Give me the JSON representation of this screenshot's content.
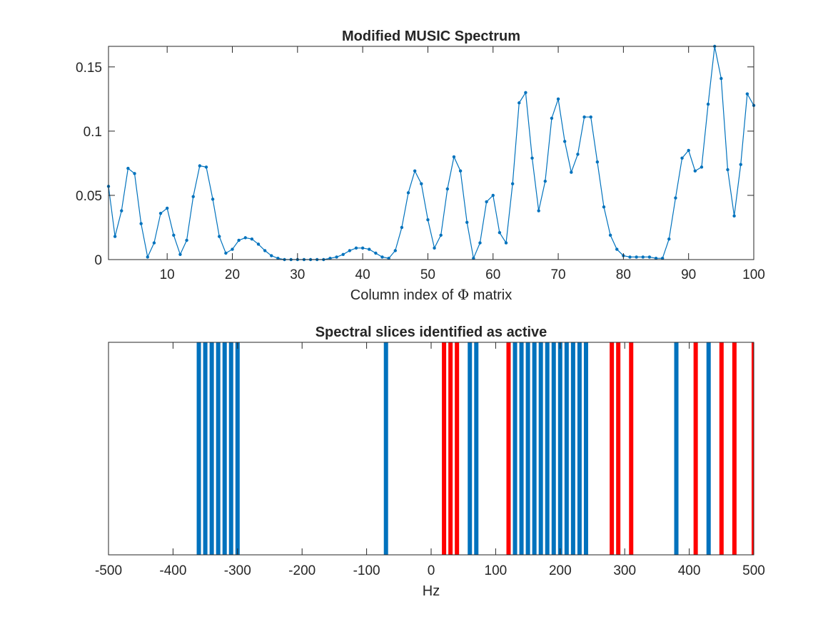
{
  "chart_data": [
    {
      "type": "line",
      "title": "Modified MUSIC Spectrum",
      "xlabel_pre": "Column index of ",
      "xlabel_sym": "Φ",
      "xlabel_post": " matrix",
      "ylabel": "",
      "xlim": [
        1,
        100
      ],
      "ylim": [
        0,
        0.166
      ],
      "xticks": [
        10,
        20,
        30,
        40,
        50,
        60,
        70,
        80,
        90,
        100
      ],
      "yticks": [
        0,
        0.05,
        0.1,
        0.15
      ],
      "ytick_labels": [
        "0",
        "0.05",
        "0.1",
        "0.15"
      ],
      "grid": false,
      "color": "#0072BD",
      "series": [
        {
          "x": [
            1,
            2,
            3,
            4,
            5,
            6,
            7,
            8,
            9,
            10,
            11,
            12,
            13,
            14,
            15,
            16,
            17,
            18,
            19,
            20,
            21,
            22,
            23,
            24,
            25,
            26,
            27,
            28,
            29,
            30,
            31,
            32,
            33,
            34,
            35,
            36,
            37,
            38,
            39,
            40,
            41,
            42,
            43,
            44,
            45,
            46,
            47,
            48,
            49,
            50,
            51,
            52,
            53,
            54,
            55,
            56,
            57,
            58,
            59,
            60,
            61,
            62,
            63,
            64,
            65,
            66,
            67,
            68,
            69,
            70,
            71,
            72,
            73,
            74,
            75,
            76,
            77,
            78,
            79,
            80,
            81,
            82,
            83,
            84,
            85,
            86,
            87,
            88,
            89,
            90,
            91,
            92,
            93,
            94,
            95,
            96,
            97,
            98,
            99,
            100
          ],
          "values": [
            0.057,
            0.018,
            0.038,
            0.071,
            0.067,
            0.028,
            0.002,
            0.013,
            0.036,
            0.04,
            0.019,
            0.004,
            0.015,
            0.049,
            0.073,
            0.072,
            0.047,
            0.018,
            0.005,
            0.008,
            0.015,
            0.017,
            0.016,
            0.012,
            0.007,
            0.003,
            0.001,
            0.0,
            0.0,
            0.0,
            0.0,
            0.0,
            0.0,
            0.0,
            0.001,
            0.002,
            0.004,
            0.007,
            0.009,
            0.009,
            0.008,
            0.005,
            0.002,
            0.001,
            0.007,
            0.025,
            0.052,
            0.069,
            0.059,
            0.031,
            0.009,
            0.019,
            0.055,
            0.08,
            0.069,
            0.029,
            0.001,
            0.013,
            0.045,
            0.05,
            0.021,
            0.013,
            0.059,
            0.122,
            0.13,
            0.079,
            0.038,
            0.061,
            0.11,
            0.125,
            0.092,
            0.068,
            0.082,
            0.111,
            0.111,
            0.076,
            0.041,
            0.019,
            0.008,
            0.003,
            0.002,
            0.002,
            0.002,
            0.002,
            0.001,
            0.001,
            0.016,
            0.048,
            0.079,
            0.085,
            0.069,
            0.072,
            0.121,
            0.166,
            0.141,
            0.07,
            0.034,
            0.074,
            0.129,
            0.12
          ]
        }
      ]
    },
    {
      "type": "bar",
      "title": "Spectral slices identified as active",
      "xlabel": "Hz",
      "ylabel": "",
      "xlim": [
        -500,
        500
      ],
      "xticks": [
        -500,
        -400,
        -300,
        -200,
        -100,
        0,
        100,
        200,
        300,
        400,
        500
      ],
      "grid": false,
      "series": [
        {
          "color": "#0072BD",
          "x": [
            -360,
            -350,
            -340,
            -330,
            -320,
            -310,
            -300,
            -70,
            60,
            70,
            130,
            140,
            150,
            160,
            170,
            180,
            190,
            200,
            210,
            220,
            230,
            240,
            380,
            430
          ]
        },
        {
          "color": "#FF0000",
          "x": [
            20,
            30,
            40,
            120,
            280,
            290,
            310,
            410,
            450,
            470,
            500
          ]
        }
      ]
    }
  ]
}
